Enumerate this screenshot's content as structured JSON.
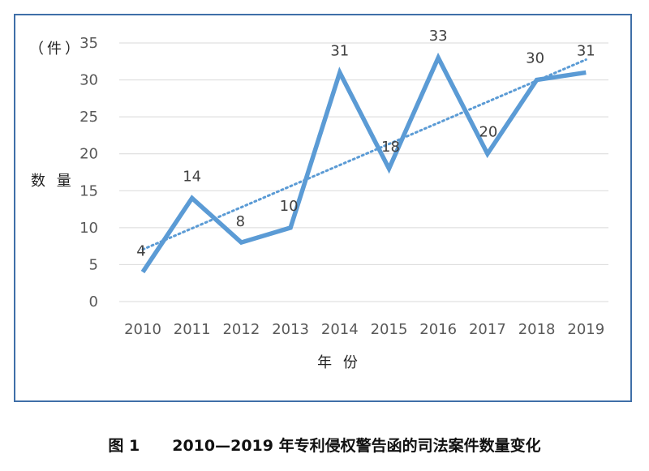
{
  "caption": {
    "figure_number": "图 1",
    "title": "2010—2019 年专利侵权警告函的司法案件数量变化"
  },
  "chart_data": {
    "type": "line",
    "categories": [
      "2010",
      "2011",
      "2012",
      "2013",
      "2014",
      "2015",
      "2016",
      "2017",
      "2018",
      "2019"
    ],
    "series": [
      {
        "values": [
          4,
          14,
          8,
          10,
          31,
          18,
          33,
          20,
          30,
          31
        ],
        "color": "#5b9bd5"
      }
    ],
    "trendline": {
      "type": "linear",
      "style": "dotted",
      "color": "#5b9bd5"
    },
    "data_labels": [
      "4",
      "14",
      "8",
      "10",
      "31",
      "18",
      "33",
      "20",
      "30",
      "31"
    ],
    "yticks": [
      0,
      5,
      10,
      15,
      20,
      25,
      30,
      35
    ],
    "ylim": [
      0,
      35
    ],
    "ylabel": "数 量",
    "yunit": "（件）",
    "xlabel": "年 份",
    "grid": true,
    "legend": "none"
  }
}
